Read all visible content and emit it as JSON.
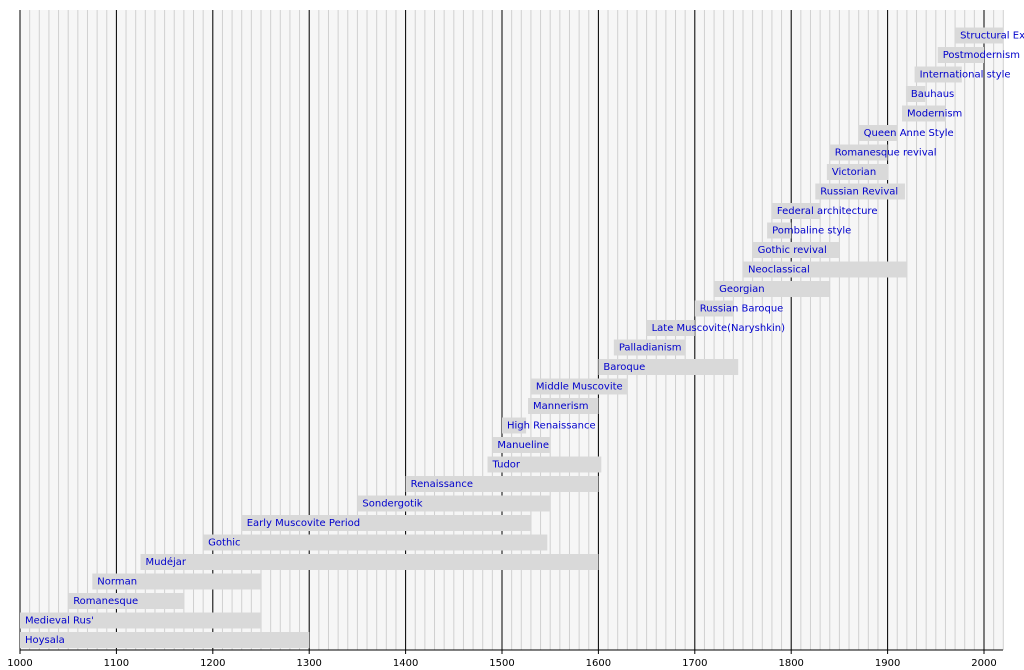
{
  "chart_data": {
    "type": "timeline",
    "categories": [
      "Hoysala",
      "Medieval Rus'",
      "Romanesque",
      "Norman",
      "Mudéjar",
      "Gothic",
      "Early Muscovite Period",
      "Sondergotik",
      "Renaissance",
      "Tudor",
      "Manueline",
      "High Renaissance",
      "Mannerism",
      "Middle Muscovite",
      "Baroque",
      "Palladianism",
      "Late Muscovite(Naryshkin)",
      "Russian Baroque",
      "Georgian",
      "Neoclassical",
      "Gothic revival",
      "Pombaline style",
      "Federal architecture",
      "Russian Revival",
      "Victorian",
      "Romanesque revival",
      "Queen Anne Style",
      "Modernism",
      "Bauhaus",
      "International style",
      "Postmodernism",
      "Structural Expressionism"
    ],
    "starts": [
      1000,
      1000,
      1050,
      1075,
      1125,
      1190,
      1230,
      1350,
      1400,
      1485,
      1490,
      1500,
      1527,
      1530,
      1600,
      1616,
      1650,
      1700,
      1720,
      1750,
      1760,
      1775,
      1780,
      1825,
      1837,
      1840,
      1870,
      1915,
      1919,
      1928,
      1952,
      1970
    ],
    "ends": [
      1300,
      1250,
      1170,
      1250,
      1600,
      1547,
      1530,
      1550,
      1600,
      1603,
      1550,
      1525,
      1600,
      1630,
      1745,
      1690,
      1700,
      1740,
      1840,
      1920,
      1850,
      1800,
      1830,
      1918,
      1901,
      1900,
      1910,
      1960,
      1939,
      1977,
      2000,
      2020
    ],
    "color": "#d9d9d9",
    "label_color": "#0000cc",
    "xlim": [
      1000,
      2020
    ],
    "xticks": [
      1000,
      1100,
      1200,
      1300,
      1400,
      1500,
      1600,
      1700,
      1800,
      1900,
      2000
    ],
    "xminor": 10,
    "grid": true
  }
}
